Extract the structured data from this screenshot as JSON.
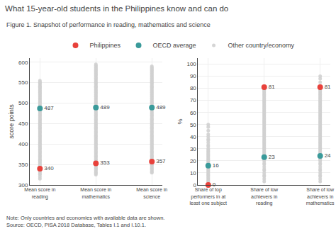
{
  "title": "What 15-year-old students in the Philippines know and can do",
  "subtitle": "Figure 1. Snapshot of performance in reading, mathematics and science",
  "note": "Note: Only countries and economies with available data are shown.\nSource: OECD, PISA 2018 Database, Tables I.1 and I.10.1.",
  "legend": "top",
  "chart_data": [
    {
      "type": "scatter",
      "ylabel": "score points",
      "ylim": [
        300,
        610
      ],
      "yticks": [
        300,
        350,
        400,
        450,
        500,
        550,
        600
      ],
      "grid": true,
      "categories": [
        "Mean score in\nreading",
        "Mean score in\nmathematics",
        "Mean score in\nscience"
      ],
      "series": [
        {
          "name": "Philippines",
          "color": "#e8413b",
          "data_labels": true,
          "values": [
            340,
            353,
            357
          ]
        },
        {
          "name": "OECD average",
          "color": "#3a9a9a",
          "data_labels": true,
          "values": [
            487,
            489,
            489
          ]
        },
        {
          "name": "Other country/economy",
          "color": "#d0d0d0",
          "values": [
            [
              315,
              320,
              325,
              327,
              330,
              333,
              335,
              338,
              340,
              343,
              345,
              348,
              350,
              352,
              355,
              358,
              360,
              362,
              365,
              368,
              370,
              372,
              375,
              378,
              380,
              382,
              385,
              388,
              390,
              392,
              395,
              398,
              400,
              402,
              405,
              408,
              410,
              413,
              415,
              418,
              420,
              422,
              425,
              428,
              430,
              432,
              435,
              438,
              440,
              442,
              445,
              447,
              450,
              452,
              455,
              458,
              460,
              462,
              465,
              468,
              470,
              472,
              475,
              477,
              480,
              483,
              485,
              488,
              490,
              492,
              495,
              498,
              500,
              502,
              505,
              507,
              510,
              512,
              515,
              517,
              520,
              522,
              525,
              527,
              530,
              532,
              535,
              538,
              540,
              542,
              545,
              548,
              550,
              552,
              555
            ],
            [
              325,
              328,
              330,
              332,
              335,
              338,
              340,
              342,
              345,
              348,
              350,
              352,
              355,
              358,
              360,
              362,
              365,
              368,
              370,
              372,
              375,
              378,
              380,
              382,
              385,
              388,
              390,
              392,
              395,
              398,
              400,
              402,
              405,
              408,
              410,
              413,
              415,
              418,
              420,
              422,
              425,
              428,
              430,
              432,
              435,
              438,
              440,
              442,
              445,
              447,
              450,
              452,
              455,
              458,
              460,
              462,
              465,
              468,
              470,
              472,
              475,
              477,
              480,
              483,
              485,
              488,
              490,
              492,
              495,
              498,
              500,
              502,
              505,
              507,
              510,
              512,
              515,
              517,
              520,
              522,
              525,
              527,
              530,
              532,
              535,
              538,
              540,
              542,
              545,
              548,
              550,
              552,
              555,
              558,
              560,
              562,
              565,
              568,
              570,
              572,
              575,
              577,
              580,
              582,
              585,
              587,
              590,
              592,
              595
            ],
            [
              330,
              332,
              335,
              338,
              340,
              342,
              345,
              348,
              350,
              352,
              355,
              358,
              360,
              362,
              365,
              368,
              370,
              372,
              375,
              378,
              380,
              382,
              385,
              388,
              390,
              392,
              395,
              398,
              400,
              402,
              405,
              408,
              410,
              413,
              415,
              418,
              420,
              422,
              425,
              428,
              430,
              432,
              435,
              438,
              440,
              442,
              445,
              447,
              450,
              452,
              455,
              458,
              460,
              462,
              465,
              468,
              470,
              472,
              475,
              477,
              480,
              483,
              485,
              488,
              490,
              492,
              495,
              498,
              500,
              502,
              505,
              507,
              510,
              512,
              515,
              517,
              520,
              522,
              525,
              527,
              530,
              532,
              535,
              538,
              540,
              542,
              545,
              548,
              550,
              552,
              555,
              557,
              560,
              562,
              565,
              567,
              570,
              572,
              575,
              577,
              580,
              582,
              585,
              587,
              590
            ]
          ]
        }
      ]
    },
    {
      "type": "scatter",
      "ylabel": "%",
      "ylim": [
        0,
        105
      ],
      "yticks": [
        0,
        10,
        20,
        30,
        40,
        50,
        60,
        70,
        80,
        90,
        100
      ],
      "grid": true,
      "categories": [
        "Share of top\nperformers in at\nleast one subject",
        "Share of low\nachievers in\nreading",
        "Share of low\nachievers in\nmathematics"
      ],
      "series": [
        {
          "name": "Philippines",
          "color": "#e8413b",
          "data_labels": true,
          "values": [
            0,
            81,
            81
          ]
        },
        {
          "name": "OECD average",
          "color": "#3a9a9a",
          "data_labels": true,
          "values": [
            16,
            23,
            24
          ]
        },
        {
          "name": "Other country/economy",
          "color": "#d0d0d0",
          "values": [
            [
              0,
              1,
              2,
              3,
              4,
              5,
              6,
              7,
              8,
              9,
              10,
              11,
              12,
              13,
              14,
              15,
              16,
              17,
              18,
              19,
              20,
              21,
              22,
              23,
              24,
              25,
              26,
              27,
              28,
              29,
              30,
              32,
              33,
              35,
              37,
              38,
              40,
              42,
              45,
              48,
              50
            ],
            [
              3,
              5,
              7,
              8,
              10,
              12,
              13,
              15,
              17,
              18,
              20,
              21,
              22,
              23,
              24,
              25,
              26,
              27,
              28,
              29,
              30,
              31,
              32,
              33,
              34,
              35,
              36,
              37,
              38,
              39,
              40,
              41,
              42,
              43,
              44,
              45,
              46,
              47,
              48,
              49,
              50,
              51,
              52,
              53,
              54,
              55,
              56,
              57,
              58,
              59,
              60,
              61,
              62,
              63,
              64,
              65,
              66,
              67,
              68,
              69,
              70,
              71,
              72,
              73,
              74,
              75,
              76,
              77,
              78,
              79,
              80
            ],
            [
              3,
              5,
              7,
              8,
              10,
              12,
              13,
              15,
              17,
              18,
              20,
              21,
              22,
              23,
              24,
              25,
              26,
              27,
              28,
              29,
              30,
              31,
              32,
              33,
              34,
              35,
              36,
              37,
              38,
              39,
              40,
              41,
              42,
              43,
              44,
              45,
              46,
              47,
              48,
              49,
              50,
              51,
              52,
              53,
              54,
              55,
              56,
              57,
              58,
              59,
              60,
              61,
              62,
              63,
              64,
              65,
              66,
              67,
              68,
              69,
              70,
              71,
              72,
              73,
              74,
              75,
              76,
              77,
              78,
              79,
              80,
              82,
              85,
              88,
              90
            ]
          ]
        }
      ]
    }
  ]
}
